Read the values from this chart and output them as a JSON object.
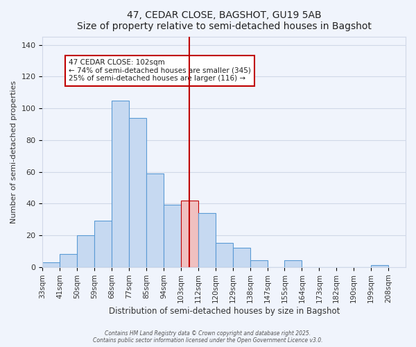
{
  "title": "47, CEDAR CLOSE, BAGSHOT, GU19 5AB",
  "subtitle": "Size of property relative to semi-detached houses in Bagshot",
  "xlabel": "Distribution of semi-detached houses by size in Bagshot",
  "ylabel": "Number of semi-detached properties",
  "bin_labels": [
    "33sqm",
    "41sqm",
    "50sqm",
    "59sqm",
    "68sqm",
    "77sqm",
    "85sqm",
    "94sqm",
    "103sqm",
    "112sqm",
    "120sqm",
    "129sqm",
    "138sqm",
    "147sqm",
    "155sqm",
    "164sqm",
    "173sqm",
    "182sqm",
    "190sqm",
    "199sqm",
    "208sqm"
  ],
  "bar_values": [
    3,
    8,
    20,
    29,
    105,
    94,
    59,
    39,
    42,
    34,
    15,
    12,
    4,
    0,
    4,
    0,
    0,
    0,
    0,
    1
  ],
  "bar_color": "#c6d9f1",
  "bar_edge_color": "#5b9bd5",
  "highlight_bar_index": 8,
  "highlight_bar_color": "#f0c0c0",
  "highlight_bar_edge_color": "#c00000",
  "vline_x": 8,
  "vline_color": "#c00000",
  "annotation_title": "47 CEDAR CLOSE: 102sqm",
  "annotation_line1": "← 74% of semi-detached houses are smaller (345)",
  "annotation_line2": "25% of semi-detached houses are larger (116) →",
  "annotation_box_color": "#ffffff",
  "annotation_box_edge_color": "#c00000",
  "ylim": [
    0,
    145
  ],
  "yticks": [
    0,
    20,
    40,
    60,
    80,
    100,
    120,
    140
  ],
  "footer_line1": "Contains HM Land Registry data © Crown copyright and database right 2025.",
  "footer_line2": "Contains public sector information licensed under the Open Government Licence v3.0.",
  "grid_color": "#d0d8e8",
  "background_color": "#f0f4fc"
}
